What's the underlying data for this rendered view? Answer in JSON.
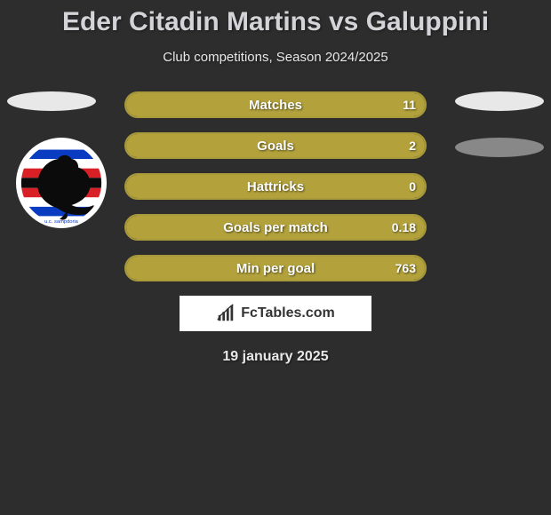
{
  "title": "Eder Citadin Martins vs Galuppini",
  "subtitle": "Club competitions, Season 2024/2025",
  "stats": [
    {
      "label": "Matches",
      "value": "11",
      "left_fill_pct": 50,
      "right_fill_pct": 50
    },
    {
      "label": "Goals",
      "value": "2",
      "left_fill_pct": 50,
      "right_fill_pct": 50
    },
    {
      "label": "Hattricks",
      "value": "0",
      "left_fill_pct": 50,
      "right_fill_pct": 50
    },
    {
      "label": "Goals per match",
      "value": "0.18",
      "left_fill_pct": 50,
      "right_fill_pct": 50
    },
    {
      "label": "Min per goal",
      "value": "763",
      "left_fill_pct": 50,
      "right_fill_pct": 50
    }
  ],
  "footer_brand": "FcTables.com",
  "date": "19 january 2025",
  "colors": {
    "bar_fill": "#b3a23c",
    "bar_border": "#a89a3a",
    "background": "#2d2d2d",
    "title_color": "#d4d4d8",
    "text_color": "#e8e8e8"
  },
  "club_badge": {
    "name": "sampdoria",
    "stripe_colors": [
      "#ffffff",
      "#0a3cc2",
      "#ffffff",
      "#d92027",
      "#0b0b0b",
      "#d92027",
      "#ffffff",
      "#0a3cc2",
      "#ffffff"
    ],
    "silhouette_color": "#0b0b0b"
  }
}
